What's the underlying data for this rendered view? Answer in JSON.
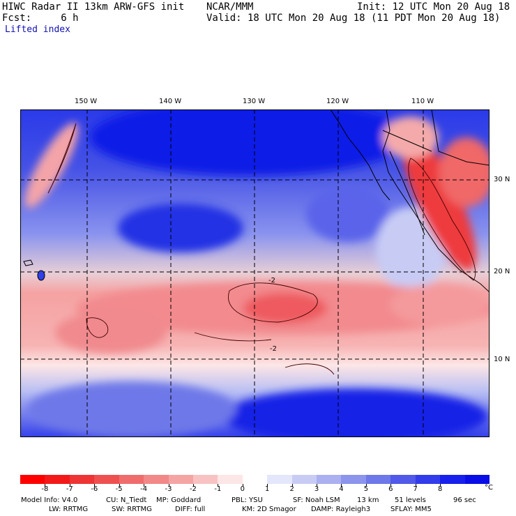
{
  "header": {
    "line1_left": "HIWC Radar II 13km ARW-GFS init",
    "line1_mid": "NCAR/MMM",
    "line1_right": "Init: 12 UTC Mon 20 Aug 18",
    "line2_left": "Fcst:     6 h",
    "line2_right": "Valid: 18 UTC Mon 20 Aug 18 (11 PDT Mon 20 Aug 18)",
    "field_name": "Lifted index"
  },
  "map": {
    "lon_labels": [
      "150 W",
      "140 W",
      "130 W",
      "120 W",
      "110 W"
    ],
    "lat_labels": [
      "30 N",
      "20 N",
      "10 N"
    ],
    "contour_label": "-2",
    "colors": {
      "strong_positive": "#0a14e6",
      "strong_negative": "#e8161c",
      "neutral": "#ffffff"
    }
  },
  "colorbar": {
    "unit": "°C",
    "labels": [
      "-8",
      "-7",
      "-6",
      "-5",
      "-4",
      "-3",
      "-2",
      "-1",
      "0",
      "1",
      "2",
      "3",
      "4",
      "5",
      "6",
      "7",
      "8"
    ],
    "colors": [
      "#ff0000",
      "#f31919",
      "#ee3434",
      "#ee5050",
      "#f06c6c",
      "#f28888",
      "#f5a4a4",
      "#f8c2c2",
      "#fde6e6",
      "#ffffff",
      "#e4e6fb",
      "#c8ccf5",
      "#aab0f0",
      "#8c94ec",
      "#6e78e8",
      "#5059e8",
      "#323cea",
      "#1820ec",
      "#0a0ee6"
    ]
  },
  "footer": {
    "line1": [
      "Model Info: V4.0",
      "CU: N_Tiedt",
      "MP: Goddard",
      "PBL: YSU",
      "SF: Noah LSM",
      "13 km",
      "51 levels",
      "96 sec"
    ],
    "line2": [
      "LW: RRTMG",
      "SW: RRTMG",
      "DIFF: full",
      "KM: 2D Smagor",
      "DAMP: Rayleigh3",
      "SFLAY: MM5"
    ]
  }
}
